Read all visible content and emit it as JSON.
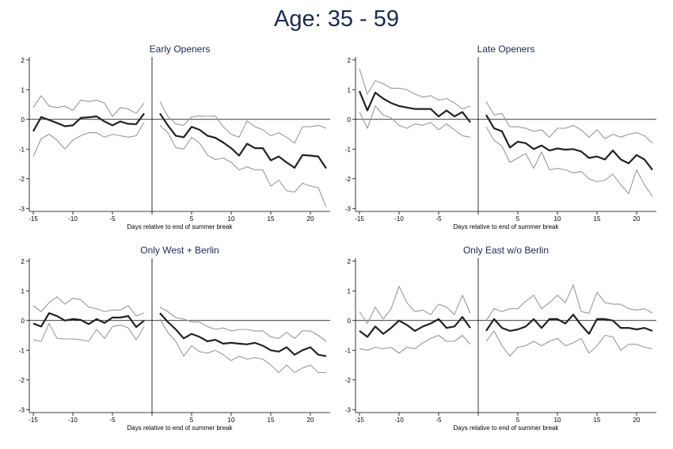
{
  "figure_title": "Age: 35 - 59",
  "colors": {
    "estimate": "#222222",
    "ci": "#999999",
    "title": "#1a2a55",
    "axis": "#000000"
  },
  "chart_data": [
    {
      "type": "line",
      "title": "Early Openers",
      "xlabel": "Days relative to end of summer break",
      "xticks": [
        -15,
        -10,
        -5,
        0,
        5,
        10,
        15,
        20
      ],
      "xtick_labels": [
        "-15",
        "-10",
        "-5",
        "",
        "5",
        "10",
        "15",
        "20"
      ],
      "yticks": [
        2,
        1,
        0,
        -1,
        -2,
        -3
      ],
      "ytick_labels": [
        "2",
        "1",
        "0",
        "-1",
        "-2",
        "-3"
      ],
      "xlim": [
        -15.5,
        22.5
      ],
      "ylim": [
        -3.1,
        2.1
      ],
      "reference_lines": {
        "x": 0,
        "y": 0
      },
      "series": [
        {
          "role": "estimate",
          "x": [
            -15,
            -14,
            -13,
            -12,
            -11,
            -10,
            -9,
            -8,
            -7,
            -6,
            -5,
            -4,
            -3,
            -2,
            -1,
            1,
            2,
            3,
            4,
            5,
            6,
            7,
            8,
            9,
            10,
            11,
            12,
            13,
            14,
            15,
            16,
            17,
            18,
            19,
            20,
            21,
            22
          ],
          "values": [
            -0.4,
            0.08,
            -0.02,
            -0.12,
            -0.23,
            -0.2,
            0.05,
            0.07,
            0.1,
            -0.07,
            -0.2,
            -0.07,
            -0.15,
            -0.16,
            0.2,
            0.2,
            -0.2,
            -0.55,
            -0.6,
            -0.25,
            -0.35,
            -0.55,
            -0.62,
            -0.78,
            -0.97,
            -1.22,
            -0.82,
            -0.97,
            -0.97,
            -1.38,
            -1.25,
            -1.45,
            -1.63,
            -1.2,
            -1.22,
            -1.25,
            -1.65
          ]
        },
        {
          "role": "upper",
          "x": [
            -15,
            -14,
            -13,
            -12,
            -11,
            -10,
            -9,
            -8,
            -7,
            -6,
            -5,
            -4,
            -3,
            -2,
            -1,
            1,
            2,
            3,
            4,
            5,
            6,
            7,
            8,
            9,
            10,
            11,
            12,
            13,
            14,
            15,
            16,
            17,
            18,
            19,
            20,
            21,
            22
          ],
          "values": [
            0.4,
            0.8,
            0.45,
            0.4,
            0.45,
            0.3,
            0.65,
            0.6,
            0.65,
            0.55,
            0.1,
            0.4,
            0.35,
            0.2,
            0.55,
            0.6,
            0.1,
            -0.15,
            -0.2,
            0.08,
            0.12,
            0.1,
            0.12,
            -0.25,
            -0.5,
            -0.6,
            -0.05,
            -0.25,
            -0.35,
            -0.55,
            -0.45,
            -0.6,
            -0.8,
            -0.25,
            -0.25,
            -0.2,
            -0.3
          ]
        },
        {
          "role": "lower",
          "x": [
            -15,
            -14,
            -13,
            -12,
            -11,
            -10,
            -9,
            -8,
            -7,
            -6,
            -5,
            -4,
            -3,
            -2,
            -1,
            1,
            2,
            3,
            4,
            5,
            6,
            7,
            8,
            9,
            10,
            11,
            12,
            13,
            14,
            15,
            16,
            17,
            18,
            19,
            20,
            21,
            22
          ],
          "values": [
            -1.25,
            -0.65,
            -0.5,
            -0.7,
            -1.0,
            -0.7,
            -0.55,
            -0.45,
            -0.45,
            -0.6,
            -0.5,
            -0.55,
            -0.6,
            -0.55,
            -0.1,
            -0.2,
            -0.45,
            -0.95,
            -1.0,
            -0.6,
            -0.8,
            -1.2,
            -1.35,
            -1.3,
            -1.45,
            -1.7,
            -1.6,
            -1.7,
            -1.7,
            -2.25,
            -2.05,
            -2.4,
            -2.45,
            -2.15,
            -2.25,
            -2.3,
            -2.95
          ]
        }
      ]
    },
    {
      "type": "line",
      "title": "Late Openers",
      "xlabel": "Days relative to end of summer break",
      "xticks": [
        -15,
        -10,
        -5,
        0,
        5,
        10,
        15,
        20
      ],
      "xtick_labels": [
        "-15",
        "-10",
        "-5",
        "",
        "5",
        "10",
        "15",
        "20"
      ],
      "yticks": [
        2,
        1,
        0,
        -1,
        -2,
        -3
      ],
      "ytick_labels": [
        "2",
        "1",
        "0",
        "-1",
        "-2",
        "-3"
      ],
      "xlim": [
        -15.5,
        22.5
      ],
      "ylim": [
        -3.1,
        2.1
      ],
      "reference_lines": {
        "x": 0,
        "y": 0
      },
      "series": [
        {
          "role": "estimate",
          "x": [
            -15,
            -14,
            -13,
            -12,
            -11,
            -10,
            -9,
            -8,
            -7,
            -6,
            -5,
            -4,
            -3,
            -2,
            -1,
            1,
            2,
            3,
            4,
            5,
            6,
            7,
            8,
            9,
            10,
            11,
            12,
            13,
            14,
            15,
            16,
            17,
            18,
            19,
            20,
            21,
            22
          ],
          "values": [
            0.95,
            0.3,
            0.9,
            0.7,
            0.55,
            0.45,
            0.4,
            0.35,
            0.35,
            0.35,
            0.1,
            0.3,
            0.1,
            0.25,
            -0.1,
            0.15,
            -0.3,
            -0.4,
            -0.95,
            -0.75,
            -0.8,
            -1.0,
            -0.88,
            -1.05,
            -0.98,
            -1.02,
            -1.0,
            -1.08,
            -1.3,
            -1.25,
            -1.35,
            -1.05,
            -1.35,
            -1.48,
            -1.2,
            -1.35,
            -1.7
          ]
        },
        {
          "role": "upper",
          "x": [
            -15,
            -14,
            -13,
            -12,
            -11,
            -10,
            -9,
            -8,
            -7,
            -6,
            -5,
            -4,
            -3,
            -2,
            -1,
            1,
            2,
            3,
            4,
            5,
            6,
            7,
            8,
            9,
            10,
            11,
            12,
            13,
            14,
            15,
            16,
            17,
            18,
            19,
            20,
            21,
            22
          ],
          "values": [
            1.7,
            0.85,
            1.3,
            1.2,
            1.05,
            1.05,
            1.0,
            0.85,
            0.75,
            0.8,
            0.65,
            0.7,
            0.55,
            0.35,
            0.45,
            0.6,
            0.15,
            0.2,
            -0.25,
            -0.25,
            -0.3,
            -0.4,
            -0.35,
            -0.6,
            -0.3,
            -0.3,
            -0.2,
            -0.35,
            -0.6,
            -0.35,
            -0.65,
            -0.5,
            -0.6,
            -0.5,
            -0.45,
            -0.55,
            -0.8
          ]
        },
        {
          "role": "lower",
          "x": [
            -15,
            -14,
            -13,
            -12,
            -11,
            -10,
            -9,
            -8,
            -7,
            -6,
            -5,
            -4,
            -3,
            -2,
            -1,
            1,
            2,
            3,
            4,
            5,
            6,
            7,
            8,
            9,
            10,
            11,
            12,
            13,
            14,
            15,
            16,
            17,
            18,
            19,
            20,
            21,
            22
          ],
          "values": [
            0.25,
            -0.3,
            0.45,
            0.15,
            0.05,
            -0.2,
            -0.3,
            -0.15,
            -0.2,
            -0.1,
            -0.35,
            -0.15,
            -0.35,
            -0.55,
            -0.6,
            -0.25,
            -0.7,
            -0.9,
            -1.45,
            -1.3,
            -1.15,
            -1.65,
            -1.1,
            -1.7,
            -1.65,
            -1.7,
            -1.8,
            -1.75,
            -2.0,
            -2.1,
            -2.05,
            -1.85,
            -2.2,
            -2.5,
            -1.7,
            -2.2,
            -2.6
          ]
        }
      ]
    },
    {
      "type": "line",
      "title": "Only West + Berlin",
      "xlabel": "Days relative to end of summer break",
      "xticks": [
        -15,
        -10,
        -5,
        0,
        5,
        10,
        15,
        20
      ],
      "xtick_labels": [
        "-15",
        "-10",
        "-5",
        "",
        "5",
        "10",
        "15",
        "20"
      ],
      "yticks": [
        2,
        1,
        0,
        -1,
        -2,
        -3
      ],
      "ytick_labels": [
        "2",
        "1",
        "0",
        "-1",
        "-2",
        "-3"
      ],
      "xlim": [
        -15.5,
        22.5
      ],
      "ylim": [
        -3.1,
        2.1
      ],
      "reference_lines": {
        "x": 0,
        "y": 0
      },
      "series": [
        {
          "role": "estimate",
          "x": [
            -15,
            -14,
            -13,
            -12,
            -11,
            -10,
            -9,
            -8,
            -7,
            -6,
            -5,
            -4,
            -3,
            -2,
            -1,
            1,
            2,
            3,
            4,
            5,
            6,
            7,
            8,
            9,
            10,
            11,
            12,
            13,
            14,
            15,
            16,
            17,
            18,
            19,
            20,
            21,
            22
          ],
          "values": [
            -0.1,
            -0.2,
            0.25,
            0.15,
            0.0,
            0.05,
            0.02,
            -0.12,
            0.05,
            -0.08,
            0.1,
            0.1,
            0.15,
            -0.22,
            0.0,
            0.25,
            -0.05,
            -0.3,
            -0.6,
            -0.45,
            -0.55,
            -0.7,
            -0.65,
            -0.78,
            -0.75,
            -0.78,
            -0.8,
            -0.75,
            -0.85,
            -1.0,
            -1.05,
            -0.9,
            -1.15,
            -1.0,
            -0.9,
            -1.15,
            -1.2
          ]
        },
        {
          "role": "upper",
          "x": [
            -15,
            -14,
            -13,
            -12,
            -11,
            -10,
            -9,
            -8,
            -7,
            -6,
            -5,
            -4,
            -3,
            -2,
            -1,
            1,
            2,
            3,
            4,
            5,
            6,
            7,
            8,
            9,
            10,
            11,
            12,
            13,
            14,
            15,
            16,
            17,
            18,
            19,
            20,
            21,
            22
          ],
          "values": [
            0.5,
            0.3,
            0.6,
            0.8,
            0.55,
            0.75,
            0.7,
            0.45,
            0.4,
            0.3,
            0.35,
            0.35,
            0.5,
            0.15,
            0.25,
            0.45,
            0.3,
            0.1,
            0.05,
            -0.05,
            -0.05,
            -0.2,
            -0.3,
            -0.25,
            -0.35,
            -0.3,
            -0.3,
            -0.35,
            -0.35,
            -0.55,
            -0.6,
            -0.4,
            -0.6,
            -0.35,
            -0.35,
            -0.5,
            -0.7
          ]
        },
        {
          "role": "lower",
          "x": [
            -15,
            -14,
            -13,
            -12,
            -11,
            -10,
            -9,
            -8,
            -7,
            -6,
            -5,
            -4,
            -3,
            -2,
            -1,
            1,
            2,
            3,
            4,
            5,
            6,
            7,
            8,
            9,
            10,
            11,
            12,
            13,
            14,
            15,
            16,
            17,
            18,
            19,
            20,
            21,
            22
          ],
          "values": [
            -0.65,
            -0.7,
            -0.1,
            -0.6,
            -0.62,
            -0.62,
            -0.65,
            -0.7,
            -0.3,
            -0.6,
            -0.2,
            -0.15,
            -0.25,
            -0.65,
            -0.2,
            0.05,
            -0.4,
            -0.7,
            -1.2,
            -0.85,
            -1.05,
            -1.1,
            -1.0,
            -1.15,
            -1.35,
            -1.2,
            -1.3,
            -1.25,
            -1.3,
            -1.5,
            -1.75,
            -1.5,
            -1.75,
            -1.6,
            -1.5,
            -1.75,
            -1.75
          ]
        }
      ]
    },
    {
      "type": "line",
      "title": "Only East w/o Berlin",
      "xlabel": "Days relative to end of summer break",
      "xticks": [
        -15,
        -10,
        -5,
        0,
        5,
        10,
        15,
        20
      ],
      "xtick_labels": [
        "-15",
        "-10",
        "-5",
        "",
        "5",
        "10",
        "15",
        "20"
      ],
      "yticks": [
        2,
        1,
        0,
        -1,
        -2,
        -3
      ],
      "ytick_labels": [
        "2",
        "1",
        "0",
        "-1",
        "-2",
        "-3"
      ],
      "xlim": [
        -15.5,
        22.5
      ],
      "ylim": [
        -3.1,
        2.1
      ],
      "reference_lines": {
        "x": 0,
        "y": 0
      },
      "series": [
        {
          "role": "estimate",
          "x": [
            -15,
            -14,
            -13,
            -12,
            -11,
            -10,
            -9,
            -8,
            -7,
            -6,
            -5,
            -4,
            -3,
            -2,
            -1,
            1,
            2,
            3,
            4,
            5,
            6,
            7,
            8,
            9,
            10,
            11,
            12,
            13,
            14,
            15,
            16,
            17,
            18,
            19,
            20,
            21,
            22
          ],
          "values": [
            -0.35,
            -0.55,
            -0.2,
            -0.45,
            -0.25,
            0.0,
            -0.15,
            -0.35,
            -0.2,
            -0.1,
            0.05,
            -0.25,
            -0.2,
            0.12,
            -0.25,
            -0.35,
            0.05,
            -0.25,
            -0.35,
            -0.3,
            -0.2,
            0.05,
            -0.25,
            0.05,
            0.05,
            -0.1,
            0.2,
            -0.15,
            -0.45,
            0.05,
            0.05,
            0.0,
            -0.25,
            -0.25,
            -0.3,
            -0.25,
            -0.35
          ]
        },
        {
          "role": "upper",
          "x": [
            -15,
            -14,
            -13,
            -12,
            -11,
            -10,
            -9,
            -8,
            -7,
            -6,
            -5,
            -4,
            -3,
            -2,
            -1,
            1,
            2,
            3,
            4,
            5,
            6,
            7,
            8,
            9,
            10,
            11,
            12,
            13,
            14,
            15,
            16,
            17,
            18,
            19,
            20,
            21,
            22
          ],
          "values": [
            0.3,
            -0.1,
            0.45,
            0.05,
            0.4,
            1.15,
            0.6,
            0.3,
            0.35,
            0.2,
            0.55,
            0.45,
            0.2,
            0.85,
            0.25,
            0.0,
            0.4,
            0.3,
            0.4,
            0.4,
            0.65,
            0.85,
            0.4,
            0.6,
            0.85,
            0.6,
            1.2,
            0.3,
            0.25,
            0.95,
            0.6,
            0.55,
            0.55,
            0.4,
            0.35,
            0.4,
            0.25
          ]
        },
        {
          "role": "lower",
          "x": [
            -15,
            -14,
            -13,
            -12,
            -11,
            -10,
            -9,
            -8,
            -7,
            -6,
            -5,
            -4,
            -3,
            -2,
            -1,
            1,
            2,
            3,
            4,
            5,
            6,
            7,
            8,
            9,
            10,
            11,
            12,
            13,
            14,
            15,
            16,
            17,
            18,
            19,
            20,
            21,
            22
          ],
          "values": [
            -0.95,
            -1.0,
            -0.9,
            -0.95,
            -0.9,
            -1.1,
            -0.9,
            -0.95,
            -0.75,
            -0.6,
            -0.5,
            -0.7,
            -0.7,
            -0.5,
            -0.8,
            -0.7,
            -0.35,
            -0.85,
            -1.2,
            -0.9,
            -0.85,
            -0.7,
            -0.85,
            -0.7,
            -0.6,
            -0.85,
            -0.75,
            -0.6,
            -1.1,
            -0.85,
            -0.5,
            -0.55,
            -1.0,
            -0.8,
            -0.8,
            -0.9,
            -0.95
          ]
        }
      ]
    }
  ]
}
